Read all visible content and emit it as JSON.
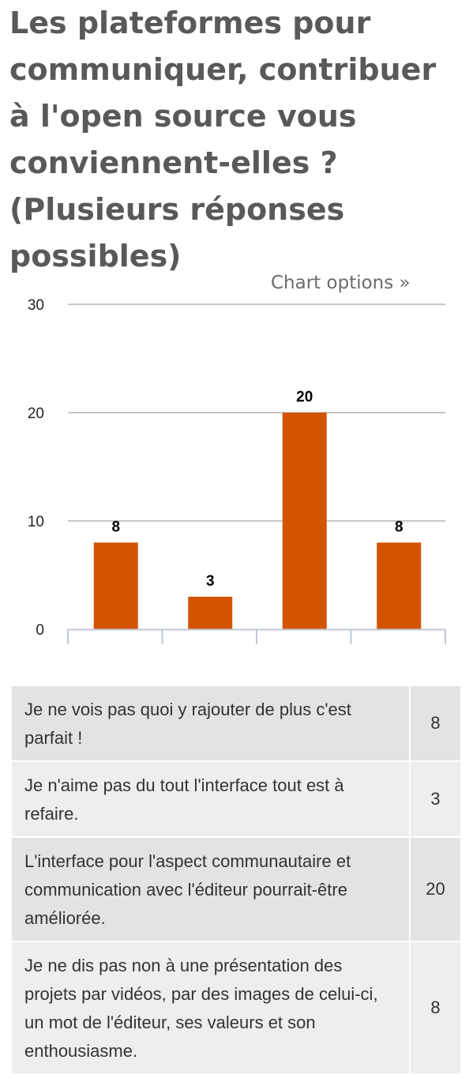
{
  "title": "Les plateformes pour communiquer, contribuer à l'open source vous conviennent-elles ? (Plusieurs réponses possibles)",
  "chart_options_link": "Chart options »",
  "colors": {
    "bar": "#d35400",
    "grid": "#c8c8c8",
    "axis": "#c0c8d8",
    "title": "#595959"
  },
  "chart_data": {
    "type": "bar",
    "categories": [
      "Je ne vois pas quoi y rajouter de plus c'est parfait !",
      "Je n'aime pas du tout l'interface tout est à refaire.",
      "L'interface pour l'aspect communautaire et communication avec l'éditeur pourrait-être améliorée.",
      "Je ne dis pas non à une présentation des projets par vidéos, par des images de celui-ci, un mot de l'éditeur, ses valeurs et son enthousiasme."
    ],
    "values": [
      8,
      3,
      20,
      8
    ],
    "ylim": [
      0,
      30
    ],
    "yticks": [
      0,
      10,
      20,
      30
    ],
    "grid": true,
    "data_labels": true,
    "xlabel": "",
    "ylabel": ""
  },
  "table": {
    "rows": [
      {
        "label": "Je ne vois pas quoi y rajouter de plus c'est parfait !",
        "count": "8"
      },
      {
        "label": "Je n'aime pas du tout l'interface tout est à refaire.",
        "count": "3"
      },
      {
        "label": "L'interface pour l'aspect communautaire et communication avec l'éditeur pourrait-être améliorée.",
        "count": "20"
      },
      {
        "label": "Je ne dis pas non à une présentation des projets par vidéos, par des images de celui-ci, un mot de l'éditeur, ses valeurs et son enthousiasme.",
        "count": "8"
      }
    ]
  }
}
